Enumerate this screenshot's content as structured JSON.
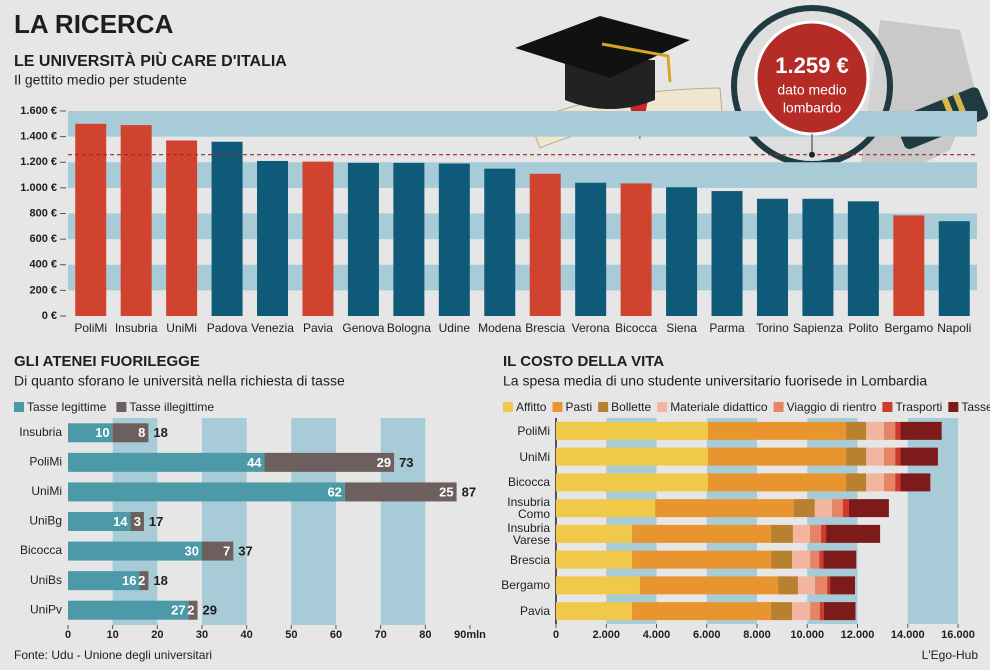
{
  "title": "LA RICERCA",
  "source": "Fonte: Udu - Unione degli universitari",
  "credit": "L'Ego-Hub",
  "chart_data": [
    {
      "type": "bar",
      "title": "LE UNIVERSITÀ PIÙ CARE D'ITALIA",
      "subtitle": "Il gettito medio per studente",
      "categories": [
        "PoliMi",
        "Insubria",
        "UniMi",
        "Padova",
        "Venezia",
        "Pavia",
        "Genova",
        "Bologna",
        "Udine",
        "Modena",
        "Brescia",
        "Verona",
        "Bicocca",
        "Siena",
        "Parma",
        "Torino",
        "Sapienza",
        "Polito",
        "Bergamo",
        "Napoli"
      ],
      "values": [
        1500,
        1490,
        1370,
        1360,
        1210,
        1205,
        1195,
        1195,
        1190,
        1150,
        1110,
        1040,
        1035,
        1005,
        975,
        915,
        915,
        895,
        785,
        740
      ],
      "colors": [
        "#d0432f",
        "#d0432f",
        "#d0432f",
        "#0e5a78",
        "#0e5a78",
        "#d0432f",
        "#0e5a78",
        "#0e5a78",
        "#0e5a78",
        "#0e5a78",
        "#d0432f",
        "#0e5a78",
        "#d0432f",
        "#0e5a78",
        "#0e5a78",
        "#0e5a78",
        "#0e5a78",
        "#0e5a78",
        "#d0432f",
        "#0e5a78"
      ],
      "ylim": [
        0,
        1600
      ],
      "yticks": [
        {
          "value": 0,
          "label": "0 €"
        },
        {
          "value": 200,
          "label": "200 €"
        },
        {
          "value": 400,
          "label": "400 €"
        },
        {
          "value": 600,
          "label": "600 €"
        },
        {
          "value": 800,
          "label": "800 €"
        },
        {
          "value": 1000,
          "label": "1.000 €"
        },
        {
          "value": 1200,
          "label": "1.200 €"
        },
        {
          "value": 1400,
          "label": "1.400 €"
        },
        {
          "value": 1600,
          "label": "1.600 €"
        }
      ],
      "band_color": "#a8cbd8",
      "reference": {
        "value": 1259,
        "label": "1.259 €",
        "note": [
          "dato medio",
          "lombardo"
        ],
        "color": "#a3281f"
      }
    },
    {
      "type": "hbar_stacked",
      "title": "GLI ATENEI FUORILEGGE",
      "subtitle": "Di quanto sforano le università nella richiesta di tasse",
      "categories": [
        "Insubria",
        "PoliMi",
        "UniMi",
        "UniBg",
        "Bicocca",
        "UniBs",
        "UniPv"
      ],
      "series": [
        {
          "name": "Tasse legittime",
          "color": "#4c9aa8",
          "values": [
            10,
            44,
            62,
            14,
            30,
            16,
            27
          ]
        },
        {
          "name": "Tasse illegittime",
          "color": "#6d5f5d",
          "values": [
            8,
            29,
            25,
            3,
            7,
            2,
            2
          ]
        }
      ],
      "totals": [
        18,
        73,
        87,
        17,
        37,
        18,
        29
      ],
      "show_values": true,
      "xlim": [
        0,
        90
      ],
      "xticks": [
        0,
        10,
        20,
        30,
        40,
        50,
        60,
        70,
        80,
        {
          "value": 90,
          "label": "90mln"
        }
      ],
      "band_color": "#a8cbd8",
      "legend": "top-left"
    },
    {
      "type": "hbar_stacked",
      "title": "IL COSTO DELLA VITA",
      "subtitle": "La spesa media di uno studente universitario fuorisede in Lombardia",
      "categories": [
        "PoliMi",
        "UniMi",
        "Bicocca",
        "Insubria Como",
        "Insubria Varese",
        "Brescia",
        "Bergamo",
        "Pavia"
      ],
      "series": [
        {
          "name": "Affitto",
          "color": "#f0c94a",
          "values": [
            6050,
            6050,
            6050,
            3950,
            3030,
            3030,
            3340,
            3030
          ]
        },
        {
          "name": "Pasti",
          "color": "#e9952f",
          "values": [
            5500,
            5500,
            5500,
            5520,
            5530,
            5530,
            5500,
            5530
          ]
        },
        {
          "name": "Bollette",
          "color": "#b9812f",
          "values": [
            800,
            800,
            800,
            830,
            870,
            840,
            790,
            840
          ]
        },
        {
          "name": "Materiale didattico",
          "color": "#f2b59f",
          "values": [
            700,
            700,
            700,
            690,
            680,
            720,
            680,
            720
          ]
        },
        {
          "name": "Viaggio di rientro",
          "color": "#e58466",
          "values": [
            450,
            450,
            450,
            430,
            440,
            360,
            480,
            380
          ]
        },
        {
          "name": "Trasporti",
          "color": "#d2392e",
          "values": [
            200,
            200,
            200,
            240,
            200,
            160,
            120,
            160
          ]
        },
        {
          "name": "Tasse",
          "color": "#7d1a1a",
          "values": [
            1650,
            1500,
            1200,
            1590,
            2150,
            1310,
            990,
            1260
          ]
        }
      ],
      "show_values": false,
      "xlim": [
        0,
        16000
      ],
      "xticks": [
        0,
        {
          "value": 2000,
          "label": "2.000"
        },
        {
          "value": 4000,
          "label": "4.000"
        },
        {
          "value": 6000,
          "label": "6.000"
        },
        {
          "value": 8000,
          "label": "8.000"
        },
        {
          "value": 10000,
          "label": "10.000"
        },
        {
          "value": 12000,
          "label": "12.000"
        },
        {
          "value": 14000,
          "label": "14.000"
        },
        {
          "value": 16000,
          "label": "16.000"
        }
      ],
      "band_color": "#a8cbd8",
      "legend": "top-left"
    }
  ]
}
